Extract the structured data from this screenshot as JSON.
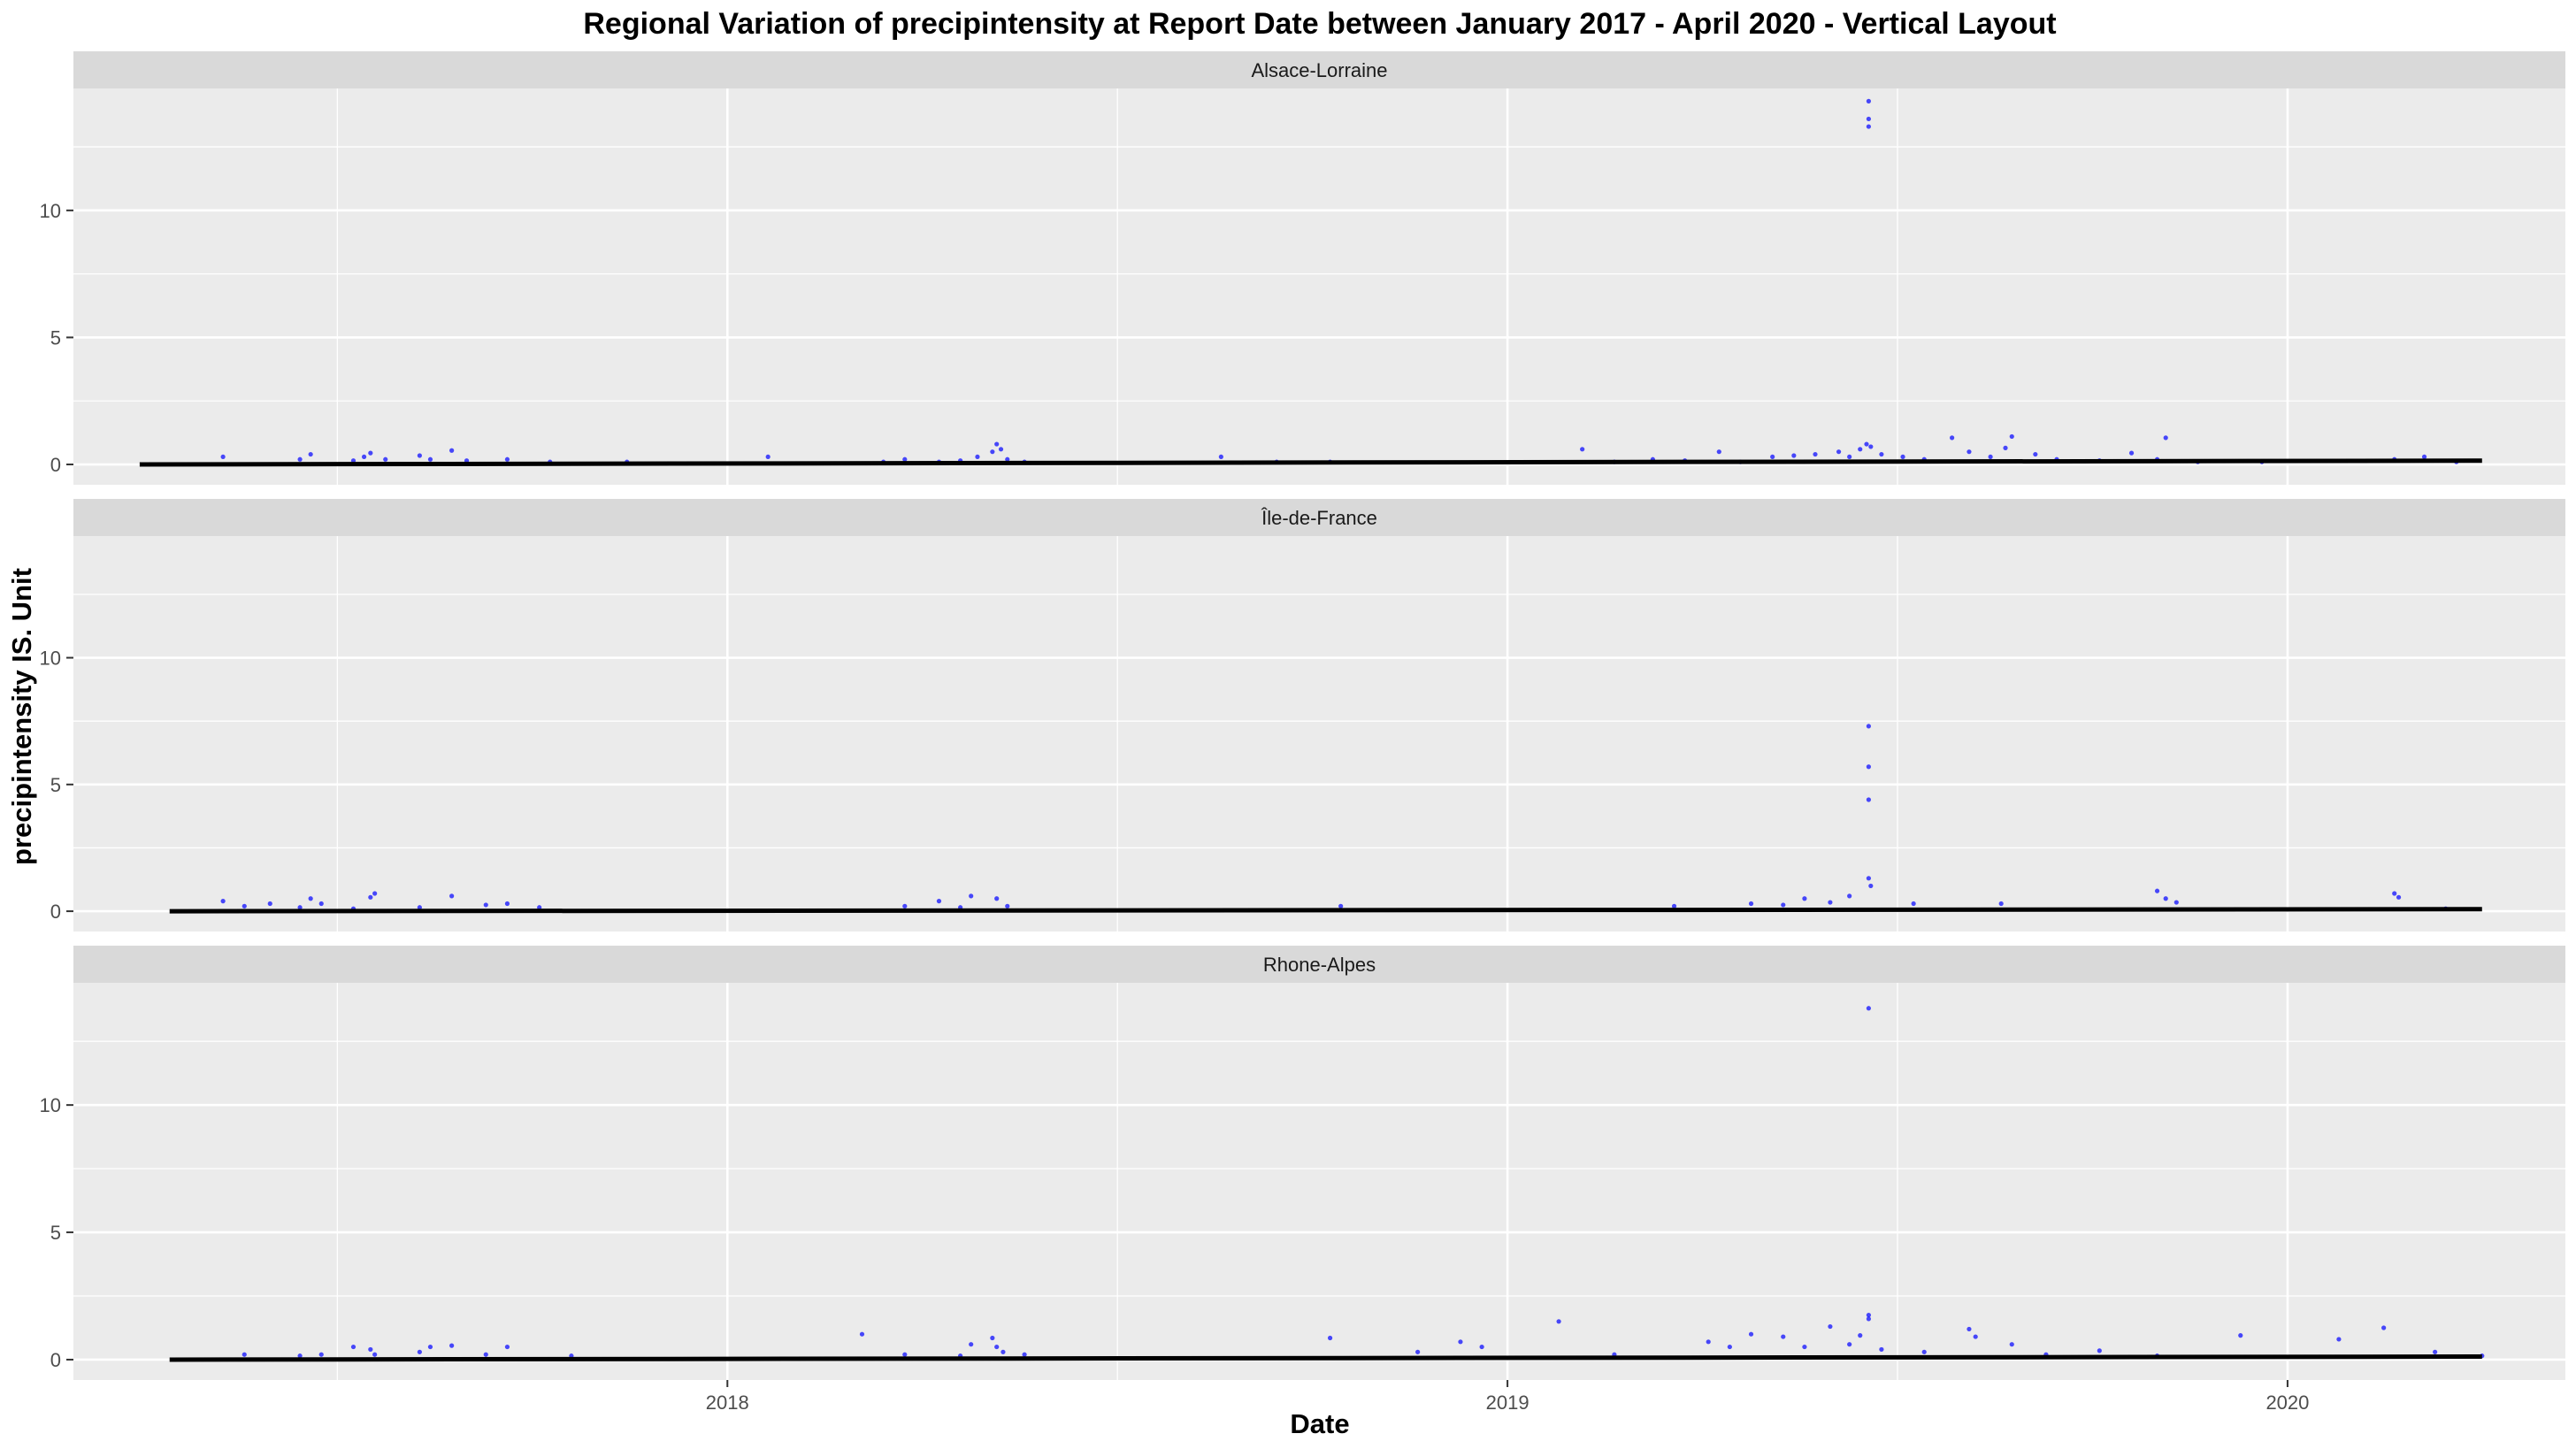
{
  "title": "Regional Variation of  precipintensity  at Report Date between January 2017 - April 2020 - Vertical Layout",
  "colors": {
    "panel_bg": "#EBEBEB",
    "strip_bg": "#D9D9D9",
    "grid": "#FFFFFF",
    "points": "#0000FF",
    "trend": "#000000"
  },
  "chart_data": {
    "type": "scatter",
    "title": "Regional Variation of  precipintensity  at Report Date between January 2017 - April 2020 - Vertical Layout",
    "xlabel": "Date",
    "ylabel": "precipintensity  IS. Unit",
    "x_type": "date",
    "xlim": [
      "2017-03-01",
      "2020-05-10"
    ],
    "ylim": [
      -0.8,
      14.8
    ],
    "x_ticks": [
      {
        "value": "2018-01-01",
        "label": "2018"
      },
      {
        "value": "2019-01-01",
        "label": "2019"
      },
      {
        "value": "2020-01-01",
        "label": "2020"
      }
    ],
    "y_ticks": [
      0,
      5,
      10
    ],
    "grid": true,
    "facets": [
      {
        "name": "Alsace-Lorraine",
        "trend": {
          "x": [
            "2017-04-01",
            "2020-04-01"
          ],
          "y": [
            0.0,
            0.15
          ]
        },
        "points": [
          [
            "2017-05-10",
            0.3
          ],
          [
            "2017-06-15",
            0.2
          ],
          [
            "2017-06-20",
            0.4
          ],
          [
            "2017-07-10",
            0.15
          ],
          [
            "2017-07-15",
            0.3
          ],
          [
            "2017-07-18",
            0.45
          ],
          [
            "2017-07-25",
            0.2
          ],
          [
            "2017-08-10",
            0.35
          ],
          [
            "2017-08-15",
            0.2
          ],
          [
            "2017-08-25",
            0.55
          ],
          [
            "2017-09-01",
            0.15
          ],
          [
            "2017-09-20",
            0.2
          ],
          [
            "2017-10-10",
            0.1
          ],
          [
            "2017-11-15",
            0.1
          ],
          [
            "2018-01-20",
            0.3
          ],
          [
            "2018-03-15",
            0.1
          ],
          [
            "2018-03-25",
            0.2
          ],
          [
            "2018-04-10",
            0.1
          ],
          [
            "2018-04-20",
            0.15
          ],
          [
            "2018-04-28",
            0.3
          ],
          [
            "2018-05-05",
            0.5
          ],
          [
            "2018-05-07",
            0.8
          ],
          [
            "2018-05-09",
            0.6
          ],
          [
            "2018-05-12",
            0.2
          ],
          [
            "2018-05-20",
            0.1
          ],
          [
            "2018-08-20",
            0.3
          ],
          [
            "2018-09-15",
            0.1
          ],
          [
            "2018-10-10",
            0.1
          ],
          [
            "2019-02-05",
            0.6
          ],
          [
            "2019-02-20",
            0.1
          ],
          [
            "2019-03-10",
            0.2
          ],
          [
            "2019-03-25",
            0.15
          ],
          [
            "2019-04-10",
            0.5
          ],
          [
            "2019-04-20",
            0.1
          ],
          [
            "2019-05-05",
            0.3
          ],
          [
            "2019-05-15",
            0.35
          ],
          [
            "2019-05-25",
            0.4
          ],
          [
            "2019-06-05",
            0.5
          ],
          [
            "2019-06-10",
            0.3
          ],
          [
            "2019-06-15",
            0.6
          ],
          [
            "2019-06-18",
            0.8
          ],
          [
            "2019-06-19",
            13.3
          ],
          [
            "2019-06-19",
            13.6
          ],
          [
            "2019-06-19",
            14.3
          ],
          [
            "2019-06-20",
            0.7
          ],
          [
            "2019-06-25",
            0.4
          ],
          [
            "2019-07-05",
            0.3
          ],
          [
            "2019-07-15",
            0.2
          ],
          [
            "2019-07-28",
            1.05
          ],
          [
            "2019-08-05",
            0.5
          ],
          [
            "2019-08-15",
            0.3
          ],
          [
            "2019-08-22",
            0.65
          ],
          [
            "2019-08-25",
            1.1
          ],
          [
            "2019-09-05",
            0.4
          ],
          [
            "2019-09-15",
            0.2
          ],
          [
            "2019-10-05",
            0.15
          ],
          [
            "2019-10-20",
            0.45
          ],
          [
            "2019-11-01",
            0.2
          ],
          [
            "2019-11-05",
            1.05
          ],
          [
            "2019-11-20",
            0.1
          ],
          [
            "2019-12-20",
            0.1
          ],
          [
            "2020-02-20",
            0.2
          ],
          [
            "2020-03-05",
            0.3
          ],
          [
            "2020-03-20",
            0.1
          ]
        ]
      },
      {
        "name": "Île-de-France",
        "trend": {
          "x": [
            "2017-04-15",
            "2020-04-01"
          ],
          "y": [
            0.0,
            0.08
          ]
        },
        "points": [
          [
            "2017-05-10",
            0.4
          ],
          [
            "2017-05-20",
            0.2
          ],
          [
            "2017-06-01",
            0.3
          ],
          [
            "2017-06-15",
            0.15
          ],
          [
            "2017-06-20",
            0.5
          ],
          [
            "2017-06-25",
            0.3
          ],
          [
            "2017-07-10",
            0.1
          ],
          [
            "2017-07-18",
            0.55
          ],
          [
            "2017-07-20",
            0.7
          ],
          [
            "2017-08-10",
            0.15
          ],
          [
            "2017-08-25",
            0.6
          ],
          [
            "2017-09-10",
            0.25
          ],
          [
            "2017-09-20",
            0.3
          ],
          [
            "2017-10-05",
            0.15
          ],
          [
            "2018-03-25",
            0.2
          ],
          [
            "2018-04-10",
            0.4
          ],
          [
            "2018-04-20",
            0.15
          ],
          [
            "2018-04-25",
            0.6
          ],
          [
            "2018-05-07",
            0.5
          ],
          [
            "2018-05-12",
            0.2
          ],
          [
            "2018-10-15",
            0.2
          ],
          [
            "2019-03-20",
            0.2
          ],
          [
            "2019-04-25",
            0.3
          ],
          [
            "2019-05-10",
            0.25
          ],
          [
            "2019-05-20",
            0.5
          ],
          [
            "2019-06-01",
            0.35
          ],
          [
            "2019-06-10",
            0.6
          ],
          [
            "2019-06-19",
            1.3
          ],
          [
            "2019-06-19",
            4.4
          ],
          [
            "2019-06-19",
            5.7
          ],
          [
            "2019-06-19",
            7.3
          ],
          [
            "2019-06-20",
            1.0
          ],
          [
            "2019-07-10",
            0.3
          ],
          [
            "2019-08-20",
            0.3
          ],
          [
            "2019-11-01",
            0.8
          ],
          [
            "2019-11-05",
            0.5
          ],
          [
            "2019-11-10",
            0.35
          ],
          [
            "2020-02-20",
            0.7
          ],
          [
            "2020-02-22",
            0.55
          ],
          [
            "2020-03-15",
            0.1
          ]
        ]
      },
      {
        "name": "Rhone-Alpes",
        "trend": {
          "x": [
            "2017-04-15",
            "2020-04-01"
          ],
          "y": [
            0.0,
            0.12
          ]
        },
        "points": [
          [
            "2017-05-20",
            0.2
          ],
          [
            "2017-06-15",
            0.15
          ],
          [
            "2017-06-25",
            0.2
          ],
          [
            "2017-07-10",
            0.5
          ],
          [
            "2017-07-18",
            0.4
          ],
          [
            "2017-07-20",
            0.2
          ],
          [
            "2017-08-10",
            0.3
          ],
          [
            "2017-08-15",
            0.5
          ],
          [
            "2017-08-25",
            0.55
          ],
          [
            "2017-09-10",
            0.2
          ],
          [
            "2017-09-20",
            0.5
          ],
          [
            "2017-10-20",
            0.15
          ],
          [
            "2018-03-05",
            1.0
          ],
          [
            "2018-03-25",
            0.2
          ],
          [
            "2018-04-20",
            0.15
          ],
          [
            "2018-04-25",
            0.6
          ],
          [
            "2018-05-05",
            0.85
          ],
          [
            "2018-05-07",
            0.5
          ],
          [
            "2018-05-10",
            0.3
          ],
          [
            "2018-05-20",
            0.2
          ],
          [
            "2018-10-10",
            0.85
          ],
          [
            "2018-11-20",
            0.3
          ],
          [
            "2018-12-10",
            0.7
          ],
          [
            "2018-12-20",
            0.5
          ],
          [
            "2019-01-25",
            1.5
          ],
          [
            "2019-02-20",
            0.2
          ],
          [
            "2019-04-05",
            0.7
          ],
          [
            "2019-04-15",
            0.5
          ],
          [
            "2019-04-25",
            1.0
          ],
          [
            "2019-05-10",
            0.9
          ],
          [
            "2019-05-20",
            0.5
          ],
          [
            "2019-06-01",
            1.3
          ],
          [
            "2019-06-10",
            0.6
          ],
          [
            "2019-06-15",
            0.95
          ],
          [
            "2019-06-19",
            1.6
          ],
          [
            "2019-06-19",
            1.75
          ],
          [
            "2019-06-19",
            13.8
          ],
          [
            "2019-06-25",
            0.4
          ],
          [
            "2019-07-15",
            0.3
          ],
          [
            "2019-08-05",
            1.2
          ],
          [
            "2019-08-08",
            0.9
          ],
          [
            "2019-08-25",
            0.6
          ],
          [
            "2019-09-10",
            0.2
          ],
          [
            "2019-10-05",
            0.35
          ],
          [
            "2019-11-01",
            0.15
          ],
          [
            "2019-12-10",
            0.95
          ],
          [
            "2020-01-25",
            0.8
          ],
          [
            "2020-02-15",
            1.25
          ],
          [
            "2020-03-10",
            0.3
          ],
          [
            "2020-04-01",
            0.15
          ]
        ]
      }
    ]
  }
}
